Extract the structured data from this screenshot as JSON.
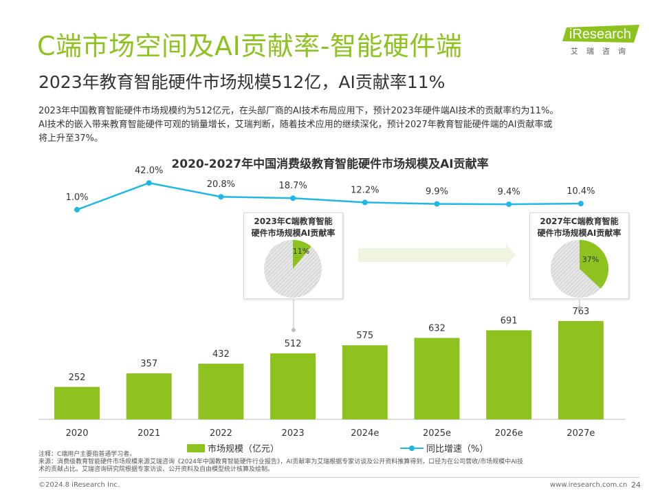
{
  "header": {
    "title": "C端市场空间及AI贡献率-智能硬件端",
    "subtitle": "2023年教育智能硬件市场规模512亿，AI贡献率11%",
    "body_line1": "2023年中国教育智能硬件市场规模约为512亿元，在头部厂商的AI技术布局应用下，预计2023年硬件端AI技术的贡献率约为11%。",
    "body_line2": "AI技术的嵌入带来教育智能硬件可观的销量增长，艾瑞判断，随着技术应用的继续深化，预计2027年教育智能硬件端的AI贡献率或",
    "body_line3": "将上升至37%。"
  },
  "logo": {
    "text": "iResearch",
    "sub": "艾瑞咨询"
  },
  "chart_data": [
    {
      "type": "bar+line",
      "title": "2020-2027年中国消费级教育智能硬件市场规模及AI贡献率",
      "categories": [
        "2020",
        "2021",
        "2022",
        "2023",
        "2024e",
        "2025e",
        "2026e",
        "2027e"
      ],
      "series": [
        {
          "name": "市场规模（亿元）",
          "type": "bar",
          "values": [
            252,
            357,
            432,
            512,
            575,
            632,
            691,
            763
          ],
          "color": "#8dc21f"
        },
        {
          "name": "同比增速（%）",
          "type": "line",
          "values": [
            1.0,
            42.0,
            20.8,
            18.7,
            12.2,
            9.9,
            9.4,
            10.4
          ],
          "labels": [
            "1.0%",
            "42.0%",
            "20.8%",
            "18.7%",
            "12.2%",
            "9.9%",
            "9.4%",
            "10.4%"
          ],
          "color": "#1fb7e6"
        }
      ],
      "legend_position": "bottom"
    },
    {
      "type": "pie",
      "title": "2023年C端教育智能硬件市场规模AI贡献率",
      "slices": [
        {
          "label": "11%",
          "value": 11,
          "color": "#8dc21f"
        },
        {
          "value": 89,
          "color": "#d0d0d0"
        }
      ]
    },
    {
      "type": "pie",
      "title": "2027年C端教育智能硬件市场规模AI贡献率",
      "slices": [
        {
          "label": "37%",
          "value": 37,
          "color": "#8dc21f"
        },
        {
          "value": 63,
          "color": "#d0d0d0"
        }
      ]
    }
  ],
  "insets": {
    "left_title_1": "2023年C端教育智能",
    "left_title_2": "硬件市场规模AI贡献率",
    "right_title_1": "2027年C端教育智能",
    "right_title_2": "硬件市场规模AI贡献率"
  },
  "legend": {
    "bar_label": "市场规模（亿元）",
    "line_label": "同比增速（%）"
  },
  "notes": {
    "line1": "注释：C端用户主要指普通学习者。",
    "line2": "来源：消费级教育智能硬件市场规模来源艾瑞咨询《2024年中国教育智能硬件行业报告》，AI贡献率为艾瑞根据专家访谈及公开资料推算得到，口径为在公司营收/市场规模中AI技",
    "line3": "术的贡献占比。艾瑞咨询研究院根据专家访谈、公开资料及自由模型统计核算及绘制。"
  },
  "footer": {
    "copyright": "©2024.8 iResearch Inc.",
    "url": "www.iresearch.com.cn",
    "page": "24"
  }
}
